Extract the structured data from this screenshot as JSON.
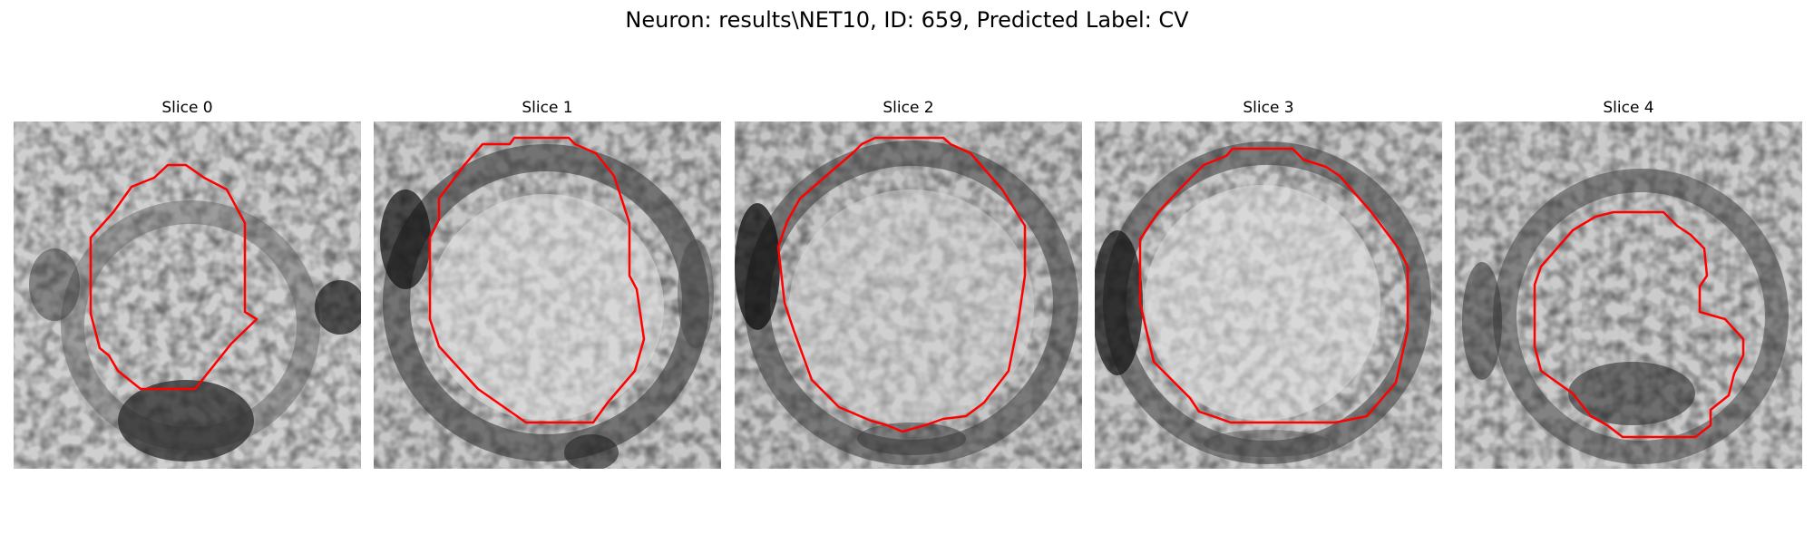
{
  "figure": {
    "title": "Neuron: results\\NET10, ID: 659, Predicted Label: CV"
  },
  "colors": {
    "contour": "#ff0000",
    "background": "#ffffff",
    "colormap": "grayscale"
  },
  "slices": [
    {
      "title": "Slice 0"
    },
    {
      "title": "Slice 1"
    },
    {
      "title": "Slice 2"
    },
    {
      "title": "Slice 3"
    },
    {
      "title": "Slice 4"
    }
  ]
}
